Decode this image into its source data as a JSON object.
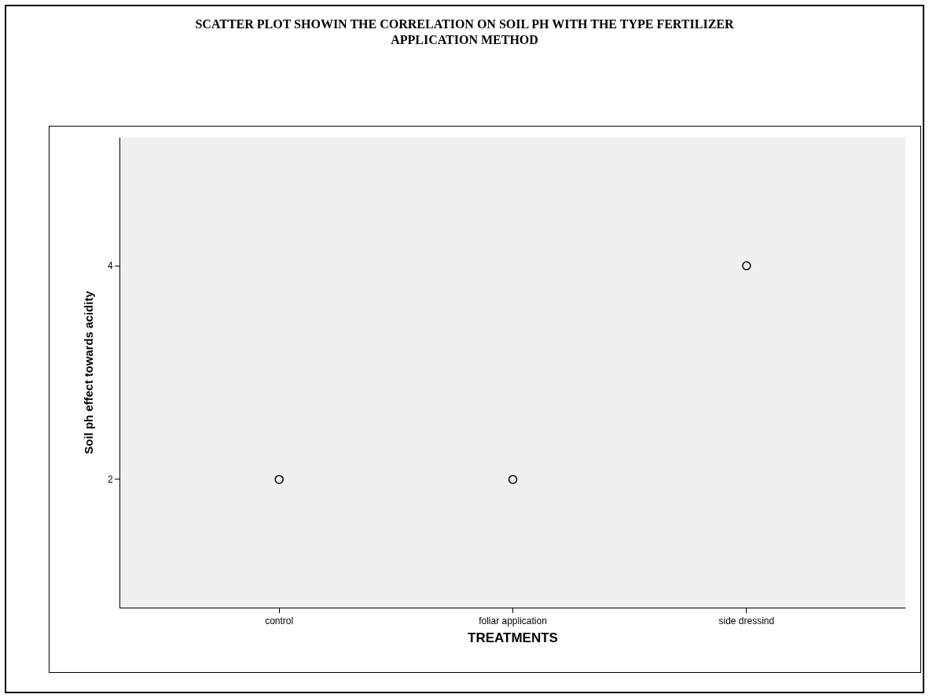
{
  "chart_data": {
    "type": "scatter",
    "title": "SCATTER PLOT SHOWIN THE CORRELATION ON SOIL PH WITH THE TYPE FERTILIZER\nAPPLICATION METHOD",
    "xlabel": "TREATMENTS",
    "ylabel": "Soil ph effect towards acidity",
    "categories": [
      "control",
      "foliar application",
      "side dressind"
    ],
    "series": [
      {
        "color": "#000000",
        "values": [
          2,
          2,
          4
        ]
      }
    ],
    "ylim": [
      0.8,
      5.2
    ],
    "yticks": [
      2,
      4
    ],
    "grid": false,
    "marker": "circle"
  }
}
